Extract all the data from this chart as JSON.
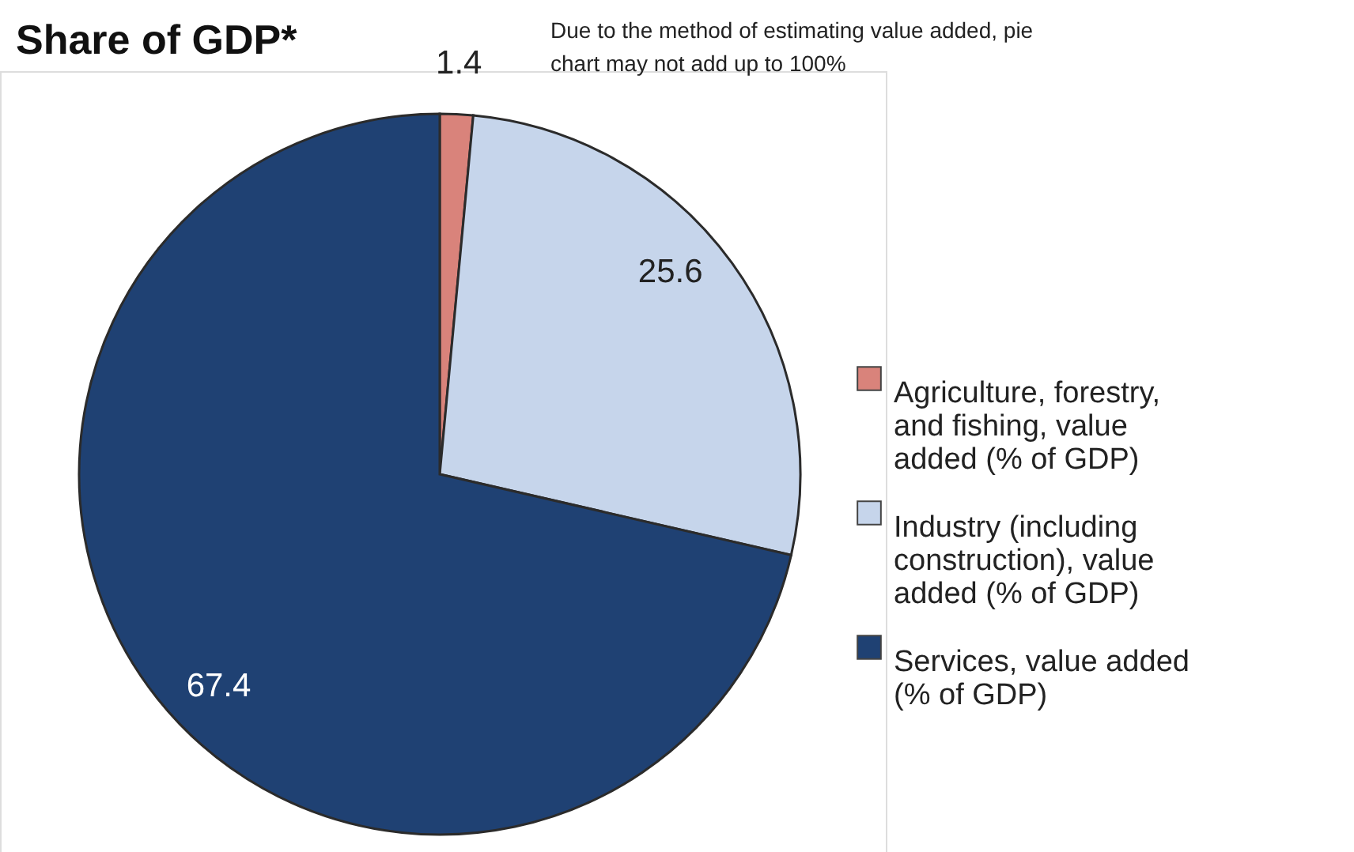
{
  "chart_data": {
    "type": "pie",
    "title": "Share of GDP*",
    "annotations": [
      "Due to the method of estimating value added, pie chart may not add up to 100%"
    ],
    "categories": [
      "Agriculture, forestry, and fishing, value added (% of GDP)",
      "Industry (including construction), value added (% of GDP)",
      "Services, value added (% of GDP)"
    ],
    "values": [
      1.4,
      25.6,
      67.4
    ],
    "colors": [
      "#d9837b",
      "#c6d5eb",
      "#1f4173"
    ],
    "data_labels": true,
    "legend": "right"
  }
}
